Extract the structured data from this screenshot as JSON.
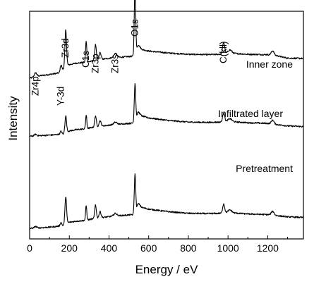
{
  "chart_data": {
    "type": "line",
    "xlabel": "Energy / eV",
    "ylabel": "Intensity",
    "xlim": [
      0,
      1380
    ],
    "x_ticks": [
      0,
      200,
      400,
      600,
      800,
      1000,
      1200
    ],
    "y_ticks_shown": false,
    "grid": false,
    "peak_labels": [
      {
        "text": "Zr4p",
        "x": 30
      },
      {
        "text": "Y-3d",
        "x": 158
      },
      {
        "text": "Zr3d",
        "x": 182
      },
      {
        "text": "C1s",
        "x": 285
      },
      {
        "text": "Zr3p",
        "x": 332
      },
      {
        "text": "Zr3s",
        "x": 432
      },
      {
        "text": "O1s",
        "x": 531
      },
      {
        "text": "C(kll)",
        "x": 978
      }
    ],
    "series": [
      {
        "name": "Inner zone",
        "baseline": [
          [
            0,
            1.5
          ],
          [
            20,
            1.9
          ],
          [
            60,
            2.4
          ],
          [
            100,
            2.7
          ],
          [
            150,
            3.2
          ],
          [
            190,
            5.6
          ],
          [
            230,
            6.2
          ],
          [
            280,
            6.5
          ],
          [
            330,
            7.0
          ],
          [
            380,
            7.6
          ],
          [
            420,
            7.9
          ],
          [
            480,
            8.2
          ],
          [
            525,
            8.4
          ],
          [
            545,
            10.2
          ],
          [
            560,
            10.6
          ],
          [
            600,
            10.0
          ],
          [
            700,
            9.4
          ],
          [
            800,
            9.0
          ],
          [
            900,
            8.9
          ],
          [
            960,
            9.0
          ],
          [
            1000,
            9.4
          ],
          [
            1050,
            9.2
          ],
          [
            1100,
            9.0
          ],
          [
            1200,
            8.9
          ],
          [
            1250,
            8.5
          ],
          [
            1300,
            7.8
          ],
          [
            1380,
            7.7
          ]
        ],
        "peaks": [
          [
            30,
            1.2,
            6
          ],
          [
            158,
            2.0,
            4
          ],
          [
            182,
            11.5,
            4
          ],
          [
            285,
            6.6,
            3
          ],
          [
            332,
            5.0,
            4
          ],
          [
            355,
            2.2,
            5
          ],
          [
            432,
            1.3,
            8
          ],
          [
            531,
            22.2,
            3.5
          ],
          [
            548,
            1.6,
            7
          ],
          [
            978,
            3.6,
            5
          ],
          [
            1010,
            1.0,
            9
          ],
          [
            1225,
            1.4,
            7
          ]
        ]
      },
      {
        "name": "Infiltrated layer",
        "baseline": [
          [
            0,
            0.6
          ],
          [
            60,
            0.8
          ],
          [
            120,
            1.0
          ],
          [
            170,
            1.3
          ],
          [
            190,
            2.1
          ],
          [
            230,
            2.6
          ],
          [
            280,
            2.9
          ],
          [
            330,
            3.5
          ],
          [
            380,
            3.9
          ],
          [
            420,
            4.2
          ],
          [
            480,
            4.5
          ],
          [
            525,
            4.7
          ],
          [
            545,
            6.7
          ],
          [
            560,
            7.0
          ],
          [
            600,
            6.3
          ],
          [
            700,
            5.5
          ],
          [
            800,
            5.0
          ],
          [
            900,
            4.9
          ],
          [
            960,
            5.0
          ],
          [
            1000,
            5.3
          ],
          [
            1050,
            5.0
          ],
          [
            1100,
            4.8
          ],
          [
            1200,
            4.6
          ],
          [
            1300,
            3.8
          ],
          [
            1380,
            3.6
          ]
        ],
        "peaks": [
          [
            30,
            0.5,
            6
          ],
          [
            158,
            0.9,
            4
          ],
          [
            182,
            5.2,
            4
          ],
          [
            285,
            4.2,
            3
          ],
          [
            332,
            3.5,
            4
          ],
          [
            355,
            1.7,
            5
          ],
          [
            432,
            0.7,
            8
          ],
          [
            531,
            11.8,
            3.5
          ],
          [
            548,
            1.3,
            7
          ],
          [
            978,
            2.8,
            5
          ],
          [
            1010,
            0.8,
            9
          ],
          [
            1225,
            1.2,
            7
          ]
        ]
      },
      {
        "name": "Pretreatment",
        "baseline": [
          [
            0,
            0.2
          ],
          [
            60,
            0.4
          ],
          [
            120,
            0.7
          ],
          [
            170,
            1.1
          ],
          [
            190,
            2.0
          ],
          [
            230,
            2.4
          ],
          [
            280,
            2.7
          ],
          [
            330,
            3.3
          ],
          [
            380,
            3.7
          ],
          [
            420,
            4.0
          ],
          [
            480,
            4.3
          ],
          [
            525,
            4.5
          ],
          [
            545,
            6.5
          ],
          [
            560,
            6.8
          ],
          [
            600,
            6.2
          ],
          [
            700,
            5.4
          ],
          [
            800,
            4.9
          ],
          [
            900,
            4.8
          ],
          [
            960,
            4.9
          ],
          [
            1000,
            5.2
          ],
          [
            1050,
            4.9
          ],
          [
            1100,
            4.7
          ],
          [
            1200,
            4.5
          ],
          [
            1300,
            3.8
          ],
          [
            1380,
            3.6
          ]
        ],
        "peaks": [
          [
            30,
            0.5,
            6
          ],
          [
            158,
            1.0,
            4
          ],
          [
            182,
            8.5,
            4
          ],
          [
            285,
            4.5,
            3
          ],
          [
            332,
            4.3,
            4
          ],
          [
            355,
            1.9,
            5
          ],
          [
            432,
            0.8,
            8
          ],
          [
            531,
            12.0,
            3.5
          ],
          [
            548,
            1.3,
            7
          ],
          [
            978,
            2.8,
            5
          ],
          [
            1010,
            0.8,
            9
          ],
          [
            1225,
            1.2,
            7
          ]
        ]
      }
    ]
  }
}
